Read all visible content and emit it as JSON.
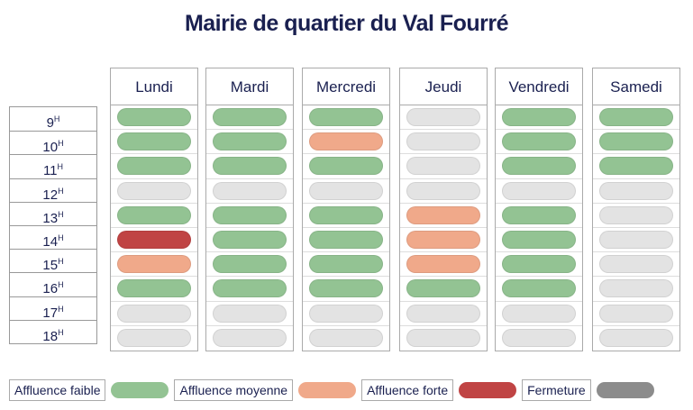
{
  "title": "Mairie de quartier du Val Fourré",
  "hours": [
    "9",
    "10",
    "11",
    "12",
    "13",
    "14",
    "15",
    "16",
    "17",
    "18"
  ],
  "hour_suffix": "H",
  "colors": {
    "faible": "#93c393",
    "moyenne": "#f0a98a",
    "forte": "#c04444",
    "fermeture": "#8c8c8c",
    "vide": "#e3e3e3"
  },
  "days": [
    {
      "label": "Lundi",
      "slots": [
        "faible",
        "faible",
        "faible",
        "vide",
        "faible",
        "forte",
        "moyenne",
        "faible",
        "vide",
        "vide"
      ]
    },
    {
      "label": "Mardi",
      "slots": [
        "faible",
        "faible",
        "faible",
        "vide",
        "faible",
        "faible",
        "faible",
        "faible",
        "vide",
        "vide"
      ]
    },
    {
      "label": "Mercredi",
      "slots": [
        "faible",
        "moyenne",
        "faible",
        "vide",
        "faible",
        "faible",
        "faible",
        "faible",
        "vide",
        "vide"
      ]
    },
    {
      "label": "Jeudi",
      "slots": [
        "vide",
        "vide",
        "vide",
        "vide",
        "moyenne",
        "moyenne",
        "moyenne",
        "faible",
        "vide",
        "vide"
      ]
    },
    {
      "label": "Vendredi",
      "slots": [
        "faible",
        "faible",
        "faible",
        "vide",
        "faible",
        "faible",
        "faible",
        "faible",
        "vide",
        "vide"
      ]
    },
    {
      "label": "Samedi",
      "slots": [
        "faible",
        "faible",
        "faible",
        "vide",
        "vide",
        "vide",
        "vide",
        "vide",
        "vide",
        "vide"
      ]
    }
  ],
  "legend": [
    {
      "label": "Affluence faible",
      "key": "faible"
    },
    {
      "label": "Affluence moyenne",
      "key": "moyenne"
    },
    {
      "label": "Affluence forte",
      "key": "forte"
    },
    {
      "label": "Fermeture",
      "key": "fermeture"
    }
  ]
}
